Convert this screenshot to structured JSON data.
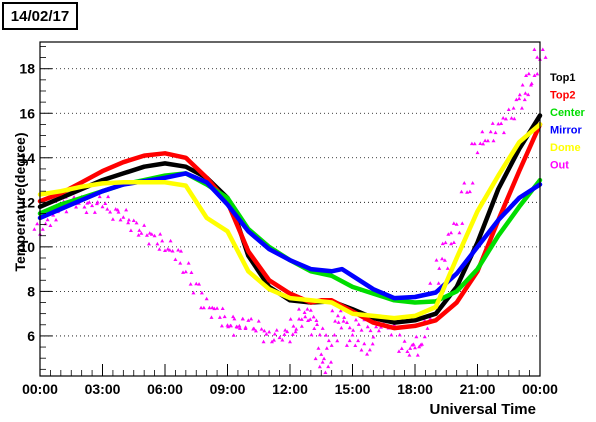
{
  "chart_data": {
    "type": "line",
    "title": "14/02/17",
    "xlabel": "Universal Time",
    "ylabel": "Temperature(degree)",
    "xlim": [
      0,
      24
    ],
    "ylim": [
      4.2,
      19.2
    ],
    "x_ticks": [
      {
        "value": 0,
        "label": "00:00"
      },
      {
        "value": 3,
        "label": "03:00"
      },
      {
        "value": 6,
        "label": "06:00"
      },
      {
        "value": 9,
        "label": "09:00"
      },
      {
        "value": 12,
        "label": "12:00"
      },
      {
        "value": 15,
        "label": "15:00"
      },
      {
        "value": 18,
        "label": "18:00"
      },
      {
        "value": 21,
        "label": "21:00"
      },
      {
        "value": 24,
        "label": "00:00"
      }
    ],
    "y_ticks": [
      6,
      8,
      10,
      12,
      14,
      16,
      18
    ],
    "grid": "horizontal dotted",
    "legend_position": "right",
    "series": [
      {
        "name": "Top1",
        "color": "#000000",
        "style": "line",
        "x": [
          0,
          1,
          2,
          3,
          4,
          5,
          6,
          7,
          8,
          9,
          9.5,
          10,
          11,
          12,
          13,
          14,
          15,
          16,
          17,
          18,
          19,
          20,
          21,
          22,
          23,
          24
        ],
        "y": [
          11.8,
          12.2,
          12.6,
          13.0,
          13.3,
          13.6,
          13.75,
          13.6,
          13.1,
          12.2,
          11.0,
          9.6,
          8.2,
          7.6,
          7.5,
          7.55,
          7.2,
          6.8,
          6.6,
          6.7,
          7.0,
          8.2,
          10.2,
          12.6,
          14.4,
          15.9
        ]
      },
      {
        "name": "Top2",
        "color": "#ff0000",
        "style": "line",
        "x": [
          0,
          1,
          2,
          3,
          4,
          5,
          6,
          7,
          8,
          9,
          10,
          11,
          12,
          13,
          13.5,
          14,
          15,
          16,
          17,
          18,
          19,
          20,
          21,
          22,
          23,
          24
        ],
        "y": [
          12.05,
          12.4,
          12.9,
          13.4,
          13.8,
          14.1,
          14.2,
          14.0,
          13.1,
          12.0,
          9.8,
          8.5,
          7.9,
          7.5,
          7.6,
          7.6,
          7.1,
          6.6,
          6.35,
          6.45,
          6.7,
          7.5,
          8.9,
          11.2,
          13.4,
          15.5
        ]
      },
      {
        "name": "Center",
        "color": "#00dd00",
        "style": "line",
        "x": [
          0,
          1,
          2,
          3,
          4,
          5,
          6,
          7,
          8,
          9,
          10,
          11,
          12,
          13,
          14,
          15,
          16,
          17,
          18,
          19,
          20,
          21,
          22,
          23,
          24
        ],
        "y": [
          11.5,
          11.9,
          12.2,
          12.5,
          12.8,
          13.0,
          13.2,
          13.3,
          12.8,
          12.2,
          10.8,
          10.0,
          9.4,
          8.9,
          8.7,
          8.2,
          7.9,
          7.6,
          7.5,
          7.55,
          8.0,
          9.0,
          10.5,
          11.8,
          13.0
        ]
      },
      {
        "name": "Mirror",
        "color": "#0000ff",
        "style": "line",
        "x": [
          0,
          1,
          2,
          3,
          4,
          5,
          6,
          7,
          8,
          9,
          10,
          11,
          12,
          13,
          14,
          14.5,
          15,
          16,
          17,
          18,
          19,
          20,
          21,
          22,
          23,
          24
        ],
        "y": [
          11.3,
          11.7,
          12.1,
          12.5,
          12.8,
          12.95,
          13.1,
          13.3,
          12.9,
          11.9,
          10.7,
          9.9,
          9.4,
          9.0,
          8.9,
          9.0,
          8.7,
          8.1,
          7.7,
          7.75,
          7.95,
          8.8,
          10.0,
          11.2,
          12.2,
          12.8
        ]
      },
      {
        "name": "Dome",
        "color": "#ffff00",
        "style": "line",
        "x": [
          0,
          1,
          2,
          3,
          4,
          5,
          6,
          7,
          8,
          9,
          10,
          11,
          12,
          13,
          14,
          15,
          16,
          17,
          18,
          19,
          20,
          21,
          22,
          23,
          24
        ],
        "y": [
          12.35,
          12.5,
          12.7,
          12.85,
          12.9,
          12.9,
          12.9,
          12.75,
          11.3,
          10.7,
          8.9,
          8.1,
          7.7,
          7.6,
          7.5,
          7.0,
          6.9,
          6.8,
          6.9,
          7.3,
          9.5,
          11.6,
          13.2,
          14.7,
          15.5
        ]
      },
      {
        "name": "Out",
        "color": "#ff00ff",
        "style": "markers",
        "x": [
          0,
          0.5,
          1,
          1.5,
          2,
          2.5,
          3,
          3.5,
          4,
          4.5,
          5,
          5.5,
          6,
          6.5,
          7,
          7.5,
          8,
          8.5,
          9,
          9.3,
          9.6,
          10,
          10.5,
          11,
          11.5,
          12,
          12.3,
          12.7,
          13,
          13.3,
          13.5,
          13.7,
          14,
          14.3,
          14.6,
          15,
          15.3,
          15.7,
          16,
          16.5,
          17,
          17.5,
          18,
          18.2,
          18.6,
          19,
          19.3,
          19.6,
          20,
          20.5,
          21,
          21.5,
          22,
          22.5,
          23,
          23.3,
          23.6,
          24
        ],
        "y": [
          10.8,
          11.2,
          11.8,
          12.2,
          12.0,
          11.8,
          12.0,
          11.5,
          11.4,
          11.0,
          10.7,
          10.4,
          10.0,
          9.7,
          9.0,
          8.2,
          7.4,
          7.1,
          6.6,
          6.3,
          6.5,
          6.6,
          6.4,
          6.0,
          6.0,
          6.0,
          6.5,
          7.0,
          6.9,
          6.3,
          5.2,
          4.6,
          5.8,
          6.9,
          6.6,
          5.8,
          6.5,
          5.4,
          6.2,
          6.6,
          6.3,
          5.5,
          5.4,
          5.7,
          6.6,
          8.1,
          9.3,
          10.3,
          10.9,
          12.6,
          14.5,
          14.9,
          15.4,
          15.9,
          16.5,
          17.0,
          17.6,
          18.6
        ]
      }
    ]
  }
}
